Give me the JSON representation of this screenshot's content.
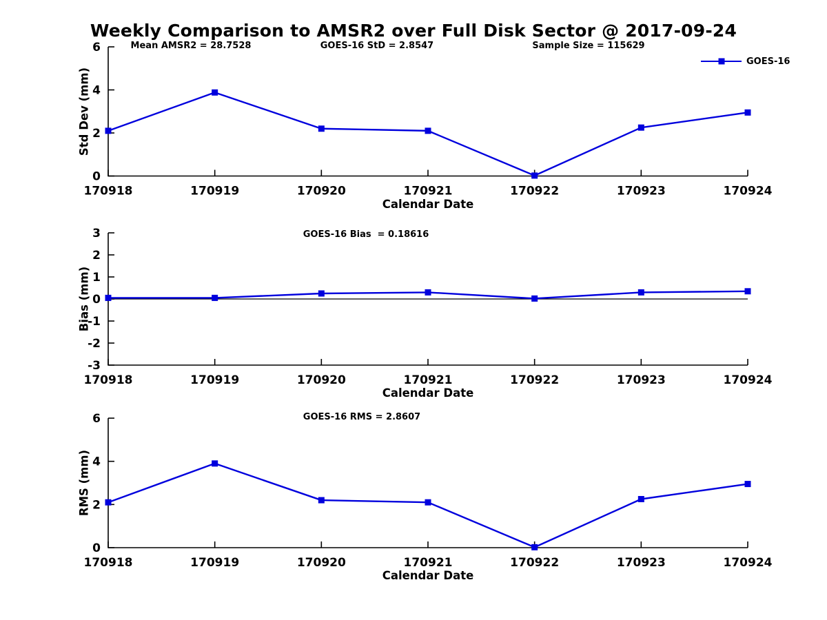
{
  "title": "Weekly Comparison to AMSR2 over Full Disk Sector @ 2017-09-24",
  "header_annotations": {
    "mean_amsr2": "Mean AMSR2 = 28.7528",
    "goes16_std": "GOES-16 StD = 2.8547",
    "sample_size": "Sample Size = 115629"
  },
  "legend": {
    "label": "GOES-16",
    "marker": "square",
    "position": "top-right",
    "color": "#0000dd"
  },
  "colors": {
    "series": "#0000dd",
    "axis": "#000000",
    "text": "#000000",
    "background": "#ffffff"
  },
  "chart_data": [
    {
      "id": "stddev",
      "type": "line",
      "categories": [
        "170918",
        "170919",
        "170920",
        "170921",
        "170922",
        "170923",
        "170924"
      ],
      "series": [
        {
          "name": "GOES-16",
          "color": "#0000dd",
          "marker": "square",
          "values": [
            2.1,
            3.88,
            2.2,
            2.1,
            0.02,
            2.25,
            2.95
          ]
        }
      ],
      "xlabel": "Calendar Date",
      "ylabel": "Std Dev (mm)",
      "ylim": [
        0,
        6
      ],
      "yticks": [
        0,
        2,
        4,
        6
      ],
      "annotation": null,
      "zero_line": false,
      "grid": false
    },
    {
      "id": "bias",
      "type": "line",
      "categories": [
        "170918",
        "170919",
        "170920",
        "170921",
        "170922",
        "170923",
        "170924"
      ],
      "series": [
        {
          "name": "GOES-16",
          "color": "#0000dd",
          "marker": "square",
          "values": [
            0.05,
            0.05,
            0.25,
            0.3,
            0.02,
            0.3,
            0.35
          ]
        }
      ],
      "xlabel": "Calendar Date",
      "ylabel": "Bias (mm)",
      "ylim": [
        -3,
        3
      ],
      "yticks": [
        -3,
        -2,
        -1,
        0,
        1,
        2,
        3
      ],
      "annotation": "GOES-16 Bias  = 0.18616",
      "zero_line": true,
      "grid": false
    },
    {
      "id": "rms",
      "type": "line",
      "categories": [
        "170918",
        "170919",
        "170920",
        "170921",
        "170922",
        "170923",
        "170924"
      ],
      "series": [
        {
          "name": "GOES-16",
          "color": "#0000dd",
          "marker": "square",
          "values": [
            2.1,
            3.9,
            2.2,
            2.1,
            0.02,
            2.25,
            2.95
          ]
        }
      ],
      "xlabel": "Calendar Date",
      "ylabel": "RMS (mm)",
      "ylim": [
        0,
        6
      ],
      "yticks": [
        0,
        2,
        4,
        6
      ],
      "annotation": "GOES-16 RMS = 2.8607",
      "zero_line": false,
      "grid": false
    }
  ]
}
